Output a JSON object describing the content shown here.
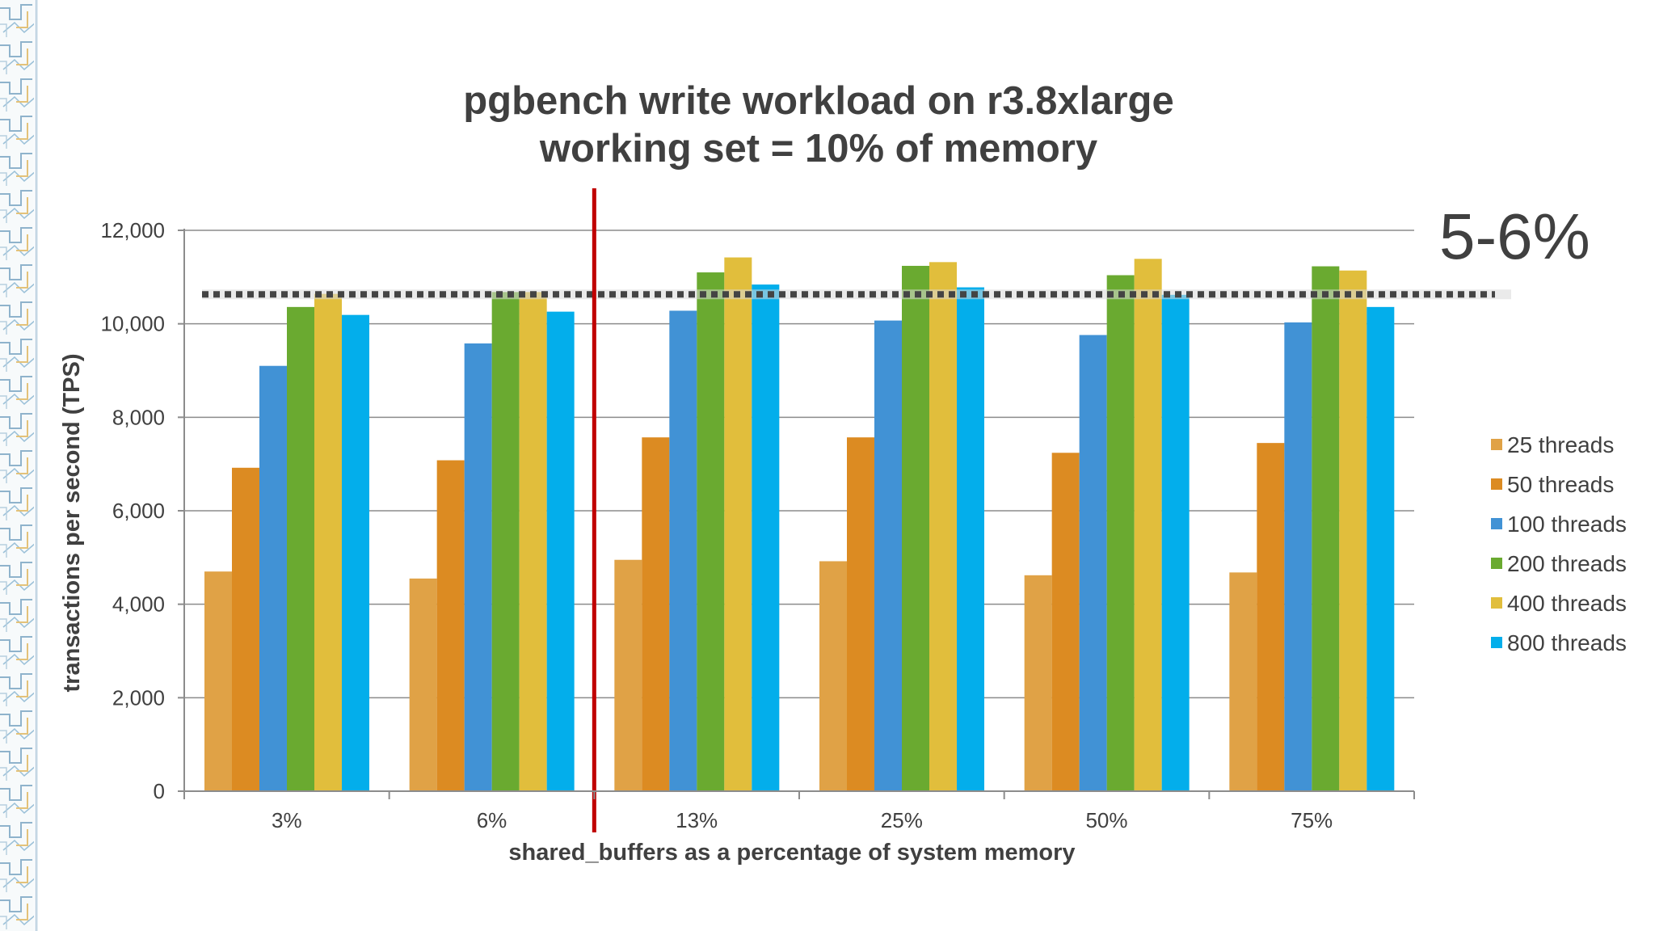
{
  "chart_data": {
    "type": "bar",
    "title": [
      "pgbench write workload on r3.8xlarge",
      "working set = 10% of memory"
    ],
    "xlabel": "shared_buffers as a percentage of system memory",
    "ylabel": "transactions per second (TPS)",
    "ylim": [
      0,
      12000
    ],
    "yticks": [
      0,
      2000,
      4000,
      6000,
      8000,
      10000,
      12000
    ],
    "ytick_labels": [
      "0",
      "2,000",
      "4,000",
      "6,000",
      "8,000",
      "10,000",
      "12,000"
    ],
    "categories": [
      "3%",
      "6%",
      "13%",
      "25%",
      "50%",
      "75%"
    ],
    "grid": "horizontal",
    "legend_position": "right",
    "series": [
      {
        "name": "25 threads",
        "color": "#E0A246",
        "values": [
          4700,
          4550,
          4950,
          4920,
          4620,
          4680
        ]
      },
      {
        "name": "50 threads",
        "color": "#DC8B22",
        "values": [
          6920,
          7080,
          7570,
          7570,
          7240,
          7450
        ]
      },
      {
        "name": "100 threads",
        "color": "#4192D5",
        "values": [
          9100,
          9580,
          10280,
          10070,
          9760,
          10030
        ]
      },
      {
        "name": "200 threads",
        "color": "#6AAA30",
        "values": [
          10360,
          10680,
          11100,
          11240,
          11040,
          11230
        ]
      },
      {
        "name": "400 threads",
        "color": "#E1BE3C",
        "values": [
          10640,
          10680,
          11420,
          11320,
          11390,
          11140
        ]
      },
      {
        "name": "800 threads",
        "color": "#03AEEB",
        "values": [
          10190,
          10260,
          10840,
          10780,
          10620,
          10360
        ]
      }
    ],
    "reference_line": {
      "value": 10630,
      "style": "dotted",
      "color": "#444444"
    },
    "divider": {
      "after_category_index": 1,
      "color": "#C00000"
    },
    "annotation": "5-6%"
  }
}
